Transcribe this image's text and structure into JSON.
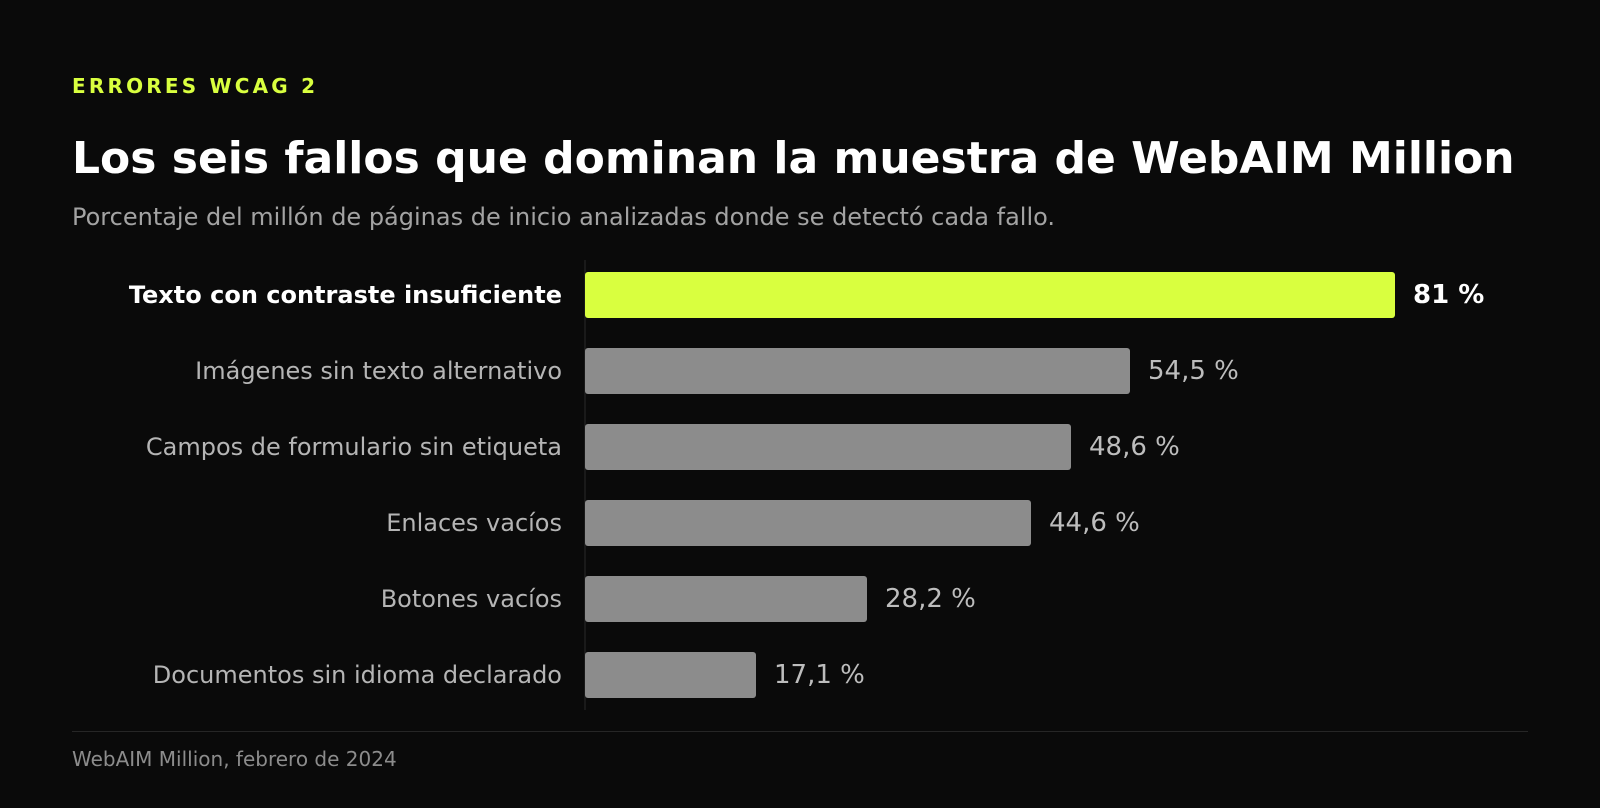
{
  "header": {
    "eyebrow": "ERRORES WCAG 2",
    "title": "Los seis fallos que dominan la muestra de WebAIM Million",
    "subtitle": "Porcentaje del millón de páginas de inicio analizadas donde se detectó cada fallo."
  },
  "chart_data": {
    "type": "bar",
    "orientation": "horizontal",
    "categories": [
      "Texto con contraste insuficiente",
      "Imágenes sin texto alternativo",
      "Campos de formulario sin etiqueta",
      "Enlaces vacíos",
      "Botones vacíos",
      "Documentos sin idioma declarado"
    ],
    "values": [
      81,
      54.5,
      48.6,
      44.6,
      28.2,
      17.1
    ],
    "value_labels": [
      "81 %",
      "54,5 %",
      "48,6 %",
      "44,6 %",
      "28,2 %",
      "17,1 %"
    ],
    "unit": "%",
    "xlim": [
      0,
      81
    ],
    "highlight_index": 0,
    "colors": {
      "highlight": "#d9ff3f",
      "default": "#8c8c8c",
      "background": "#0a0a0a"
    },
    "grid": false,
    "legend": "none"
  },
  "footer": {
    "source": "WebAIM Million, febrero de 2024"
  }
}
